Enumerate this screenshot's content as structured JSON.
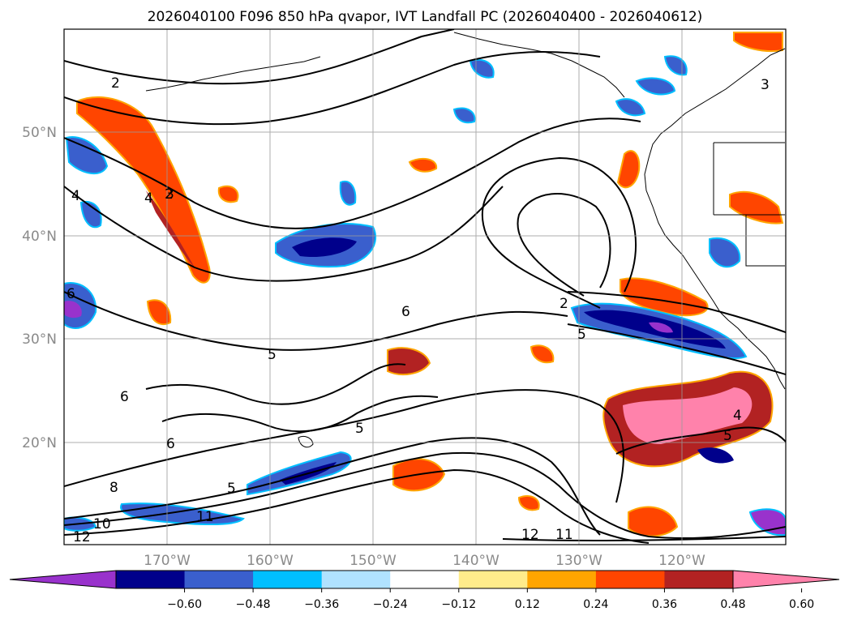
{
  "title": "2026040100 F096 850 hPa qvapor, IVT Landfall PC (2026040400 - 2026040612)",
  "lat_labels": [
    "50°N",
    "40°N",
    "30°N",
    "20°N"
  ],
  "lon_labels": [
    "170°W",
    "160°W",
    "150°W",
    "140°W",
    "130°W",
    "120°W"
  ],
  "colorbar": {
    "colors": [
      "#9932cc",
      "#00008b",
      "#3a5fcd",
      "#00bfff",
      "#b0e2ff",
      "#ffffff",
      "#ffec8b",
      "#ffa500",
      "#ff4500",
      "#b22222",
      "#ff82ab"
    ],
    "ticks": [
      "−0.60",
      "−0.48",
      "−0.36",
      "−0.24",
      "−0.12",
      "0.12",
      "0.24",
      "0.36",
      "0.48",
      "0.60"
    ]
  },
  "contour_labels": [
    "2",
    "2",
    "3",
    "4",
    "4",
    "5",
    "5",
    "6",
    "6",
    "6",
    "8",
    "10",
    "11",
    "12",
    "12",
    "11",
    "2",
    "5",
    "6",
    "5",
    "4",
    "3",
    "5"
  ]
}
